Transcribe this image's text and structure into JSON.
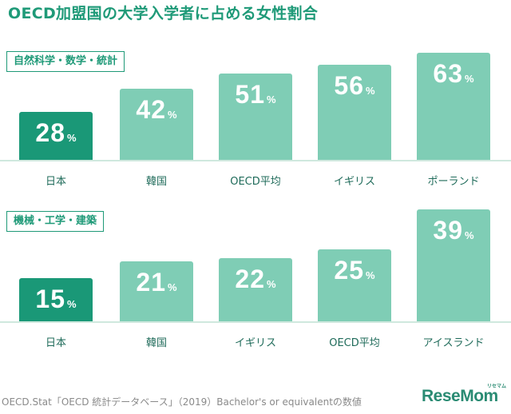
{
  "title": "OECD加盟国の大学入学者に占める女性割合",
  "source": "OECD.Stat「OECD 統計データベース」（2019）Bachelor's or equivalentの数値",
  "logo": {
    "text": "ReseMom",
    "ruby": "リセマム"
  },
  "colors": {
    "highlight": "#1a9877",
    "bar": "#7fcdb5",
    "accent": "#1f9a78",
    "baseline": "#cfe8de"
  },
  "chart_data": [
    {
      "type": "bar",
      "title": "自然科学・数学・統計",
      "categories": [
        "日本",
        "韓国",
        "OECD平均",
        "イギリス",
        "ポーランド"
      ],
      "values": [
        28,
        42,
        51,
        56,
        63
      ],
      "unit": "%",
      "highlight_index": 0,
      "ylim": [
        0,
        63
      ]
    },
    {
      "type": "bar",
      "title": "機械・工学・建築",
      "categories": [
        "日本",
        "韓国",
        "イギリス",
        "OECD平均",
        "アイスランド"
      ],
      "values": [
        15,
        21,
        22,
        25,
        39
      ],
      "unit": "%",
      "highlight_index": 0,
      "ylim": [
        0,
        39
      ]
    }
  ]
}
